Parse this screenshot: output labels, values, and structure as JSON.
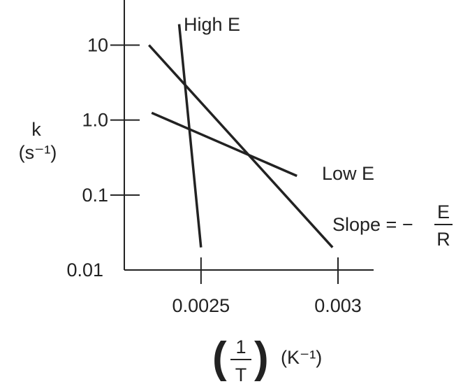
{
  "chart_data": {
    "type": "line",
    "title": "",
    "ylabel": {
      "symbol": "k",
      "unit": "(s⁻¹)"
    },
    "xlabel": {
      "num": "1",
      "den": "T",
      "unit": "(K⁻¹)"
    },
    "yscale": "log",
    "ylim": [
      0.01,
      40
    ],
    "xlim": [
      0.00222,
      0.00313
    ],
    "y_ticks": [
      {
        "value": 10,
        "label": "10"
      },
      {
        "value": 1,
        "label": "1.0"
      },
      {
        "value": 0.1,
        "label": "0.1"
      },
      {
        "value": 0.01,
        "label": "0.01"
      }
    ],
    "x_ticks": [
      {
        "value": 0.0025,
        "label": "0.0025"
      },
      {
        "value": 0.003,
        "label": "0.003"
      }
    ],
    "grid": false,
    "legend": "none",
    "series": [
      {
        "name": "High E",
        "x": [
          0.00242,
          0.0025
        ],
        "y": [
          19,
          0.02
        ]
      },
      {
        "name": "",
        "x": [
          0.00231,
          0.00298
        ],
        "y": [
          10,
          0.02
        ]
      },
      {
        "name": "Low E",
        "x": [
          0.00232,
          0.00285
        ],
        "y": [
          1.25,
          0.18
        ]
      }
    ],
    "annotation": {
      "text": "Slope = −",
      "num": "E",
      "den": "R"
    },
    "colors": {
      "ink": "#222222"
    }
  }
}
